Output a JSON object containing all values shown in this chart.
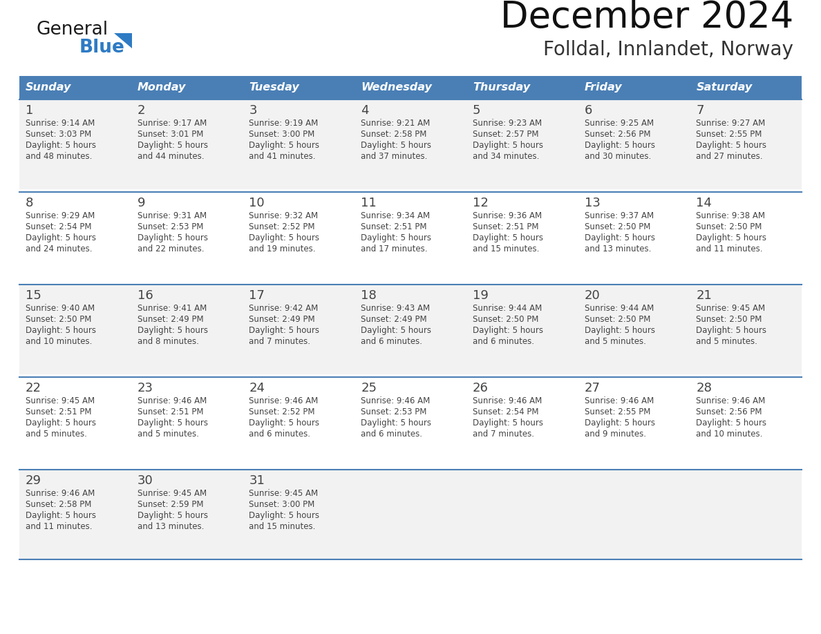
{
  "title": "December 2024",
  "subtitle": "Folldal, Innlandet, Norway",
  "days_of_week": [
    "Sunday",
    "Monday",
    "Tuesday",
    "Wednesday",
    "Thursday",
    "Friday",
    "Saturday"
  ],
  "header_bg": "#4A7FB5",
  "header_text": "#FFFFFF",
  "row_bg_light": "#F2F2F2",
  "row_bg_white": "#FFFFFF",
  "border_color": "#4A7FB5",
  "text_color": "#444444",
  "day_num_color": "#555555",
  "calendar_data": [
    [
      {
        "day": 1,
        "sunrise": "9:14 AM",
        "sunset": "3:03 PM",
        "daylight_min": "and 48 minutes."
      },
      {
        "day": 2,
        "sunrise": "9:17 AM",
        "sunset": "3:01 PM",
        "daylight_min": "and 44 minutes."
      },
      {
        "day": 3,
        "sunrise": "9:19 AM",
        "sunset": "3:00 PM",
        "daylight_min": "and 41 minutes."
      },
      {
        "day": 4,
        "sunrise": "9:21 AM",
        "sunset": "2:58 PM",
        "daylight_min": "and 37 minutes."
      },
      {
        "day": 5,
        "sunrise": "9:23 AM",
        "sunset": "2:57 PM",
        "daylight_min": "and 34 minutes."
      },
      {
        "day": 6,
        "sunrise": "9:25 AM",
        "sunset": "2:56 PM",
        "daylight_min": "and 30 minutes."
      },
      {
        "day": 7,
        "sunrise": "9:27 AM",
        "sunset": "2:55 PM",
        "daylight_min": "and 27 minutes."
      }
    ],
    [
      {
        "day": 8,
        "sunrise": "9:29 AM",
        "sunset": "2:54 PM",
        "daylight_min": "and 24 minutes."
      },
      {
        "day": 9,
        "sunrise": "9:31 AM",
        "sunset": "2:53 PM",
        "daylight_min": "and 22 minutes."
      },
      {
        "day": 10,
        "sunrise": "9:32 AM",
        "sunset": "2:52 PM",
        "daylight_min": "and 19 minutes."
      },
      {
        "day": 11,
        "sunrise": "9:34 AM",
        "sunset": "2:51 PM",
        "daylight_min": "and 17 minutes."
      },
      {
        "day": 12,
        "sunrise": "9:36 AM",
        "sunset": "2:51 PM",
        "daylight_min": "and 15 minutes."
      },
      {
        "day": 13,
        "sunrise": "9:37 AM",
        "sunset": "2:50 PM",
        "daylight_min": "and 13 minutes."
      },
      {
        "day": 14,
        "sunrise": "9:38 AM",
        "sunset": "2:50 PM",
        "daylight_min": "and 11 minutes."
      }
    ],
    [
      {
        "day": 15,
        "sunrise": "9:40 AM",
        "sunset": "2:50 PM",
        "daylight_min": "and 10 minutes."
      },
      {
        "day": 16,
        "sunrise": "9:41 AM",
        "sunset": "2:49 PM",
        "daylight_min": "and 8 minutes."
      },
      {
        "day": 17,
        "sunrise": "9:42 AM",
        "sunset": "2:49 PM",
        "daylight_min": "and 7 minutes."
      },
      {
        "day": 18,
        "sunrise": "9:43 AM",
        "sunset": "2:49 PM",
        "daylight_min": "and 6 minutes."
      },
      {
        "day": 19,
        "sunrise": "9:44 AM",
        "sunset": "2:50 PM",
        "daylight_min": "and 6 minutes."
      },
      {
        "day": 20,
        "sunrise": "9:44 AM",
        "sunset": "2:50 PM",
        "daylight_min": "and 5 minutes."
      },
      {
        "day": 21,
        "sunrise": "9:45 AM",
        "sunset": "2:50 PM",
        "daylight_min": "and 5 minutes."
      }
    ],
    [
      {
        "day": 22,
        "sunrise": "9:45 AM",
        "sunset": "2:51 PM",
        "daylight_min": "and 5 minutes."
      },
      {
        "day": 23,
        "sunrise": "9:46 AM",
        "sunset": "2:51 PM",
        "daylight_min": "and 5 minutes."
      },
      {
        "day": 24,
        "sunrise": "9:46 AM",
        "sunset": "2:52 PM",
        "daylight_min": "and 6 minutes."
      },
      {
        "day": 25,
        "sunrise": "9:46 AM",
        "sunset": "2:53 PM",
        "daylight_min": "and 6 minutes."
      },
      {
        "day": 26,
        "sunrise": "9:46 AM",
        "sunset": "2:54 PM",
        "daylight_min": "and 7 minutes."
      },
      {
        "day": 27,
        "sunrise": "9:46 AM",
        "sunset": "2:55 PM",
        "daylight_min": "and 9 minutes."
      },
      {
        "day": 28,
        "sunrise": "9:46 AM",
        "sunset": "2:56 PM",
        "daylight_min": "and 10 minutes."
      }
    ],
    [
      {
        "day": 29,
        "sunrise": "9:46 AM",
        "sunset": "2:58 PM",
        "daylight_min": "and 11 minutes."
      },
      {
        "day": 30,
        "sunrise": "9:45 AM",
        "sunset": "2:59 PM",
        "daylight_min": "and 13 minutes."
      },
      {
        "day": 31,
        "sunrise": "9:45 AM",
        "sunset": "3:00 PM",
        "daylight_min": "and 15 minutes."
      },
      null,
      null,
      null,
      null
    ]
  ],
  "logo_color_general": "#1A1A1A",
  "logo_color_blue": "#2E7BC4",
  "logo_triangle_color": "#2E7BC4"
}
